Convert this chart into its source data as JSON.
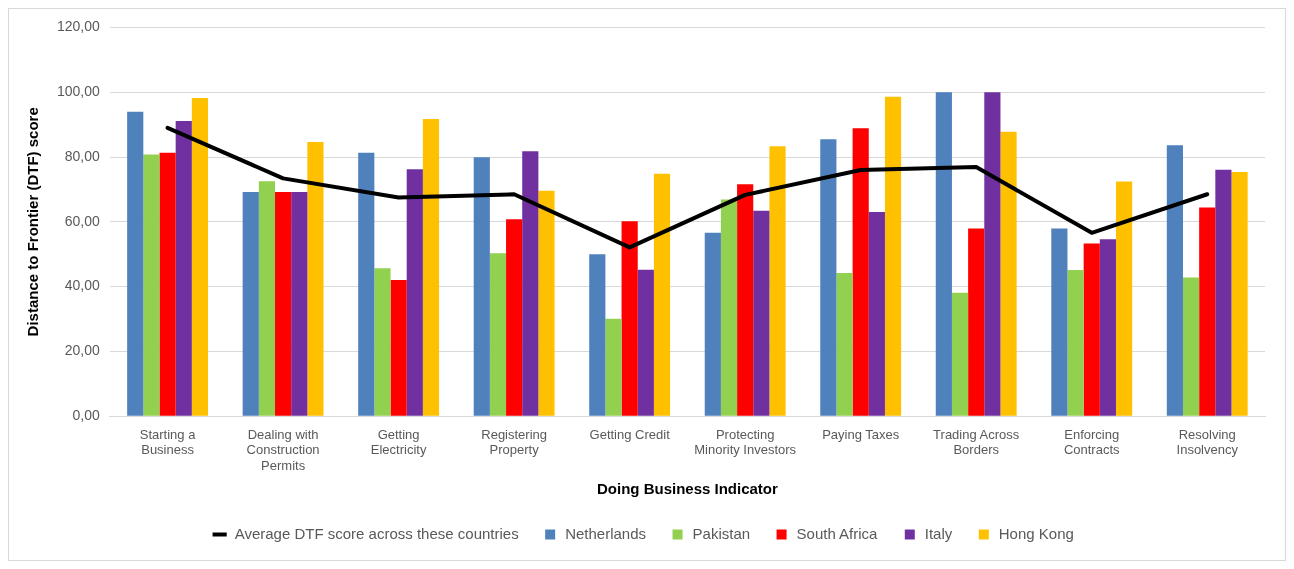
{
  "chart_data": {
    "type": "bar",
    "xlabel": "Doing Business Indicator",
    "ylabel": "Distance to Frontier (DTF) score",
    "categories": [
      "Starting a Business",
      "Dealing with Construction Permits",
      "Getting Electricity",
      "Registering Property",
      "Getting Credit",
      "Protecting Minority Investors",
      "Paying Taxes",
      "Trading Across Borders",
      "Enforcing Contracts",
      "Resolving Insolvency"
    ],
    "series": [
      {
        "name": "Netherlands",
        "color": "#4f81bd",
        "values": [
          94,
          69.2,
          81.3,
          79.9,
          50,
          56.6,
          85.5,
          100,
          57.9,
          83.6
        ]
      },
      {
        "name": "Pakistan",
        "color": "#92d050",
        "values": [
          80.8,
          72.5,
          45.7,
          50.3,
          30.1,
          66.9,
          44.2,
          38.1,
          45.1,
          42.8
        ]
      },
      {
        "name": "South Africa",
        "color": "#ff0000",
        "values": [
          81.3,
          69.2,
          42,
          60.8,
          60.2,
          71.6,
          88.9,
          57.9,
          53.3,
          64.4
        ]
      },
      {
        "name": "Italy",
        "color": "#7030a0",
        "values": [
          91.1,
          69.2,
          76.2,
          81.8,
          45.2,
          63.4,
          63,
          100,
          54.6,
          76.1
        ]
      },
      {
        "name": "Hong Kong",
        "color": "#ffc000",
        "values": [
          98.2,
          84.6,
          91.7,
          69.6,
          74.8,
          83.3,
          98.6,
          87.8,
          72.4,
          75.4
        ]
      },
      {
        "name": "Average DTF score across these countries",
        "type": "line",
        "color": "#000000",
        "values": [
          89,
          73.4,
          67.5,
          68.5,
          52.1,
          68.3,
          76,
          76.9,
          56.6,
          68.5
        ]
      }
    ],
    "ylim": [
      0,
      120
    ],
    "yticks": [
      {
        "value": 0,
        "label": "0,00"
      },
      {
        "value": 20,
        "label": "20,00"
      },
      {
        "value": 40,
        "label": "40,00"
      },
      {
        "value": 60,
        "label": "60,00"
      },
      {
        "value": 80,
        "label": "80,00"
      },
      {
        "value": 100,
        "label": "100,00"
      },
      {
        "value": 120,
        "label": "120,00"
      }
    ],
    "grid": "y",
    "legend": "bottom",
    "marker": "none",
    "line_style": "solid"
  }
}
